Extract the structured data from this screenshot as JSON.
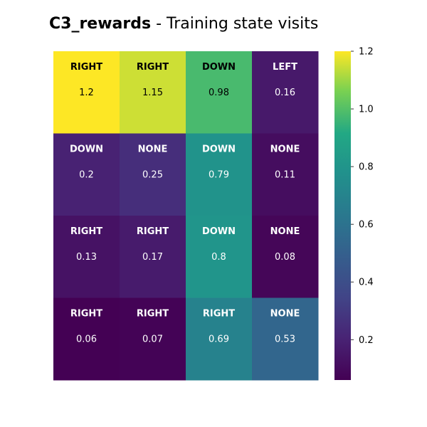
{
  "title": {
    "bold_part": "C3_rewards",
    "rest": " - Training state visits"
  },
  "chart_data": {
    "type": "heatmap",
    "rows": 4,
    "cols": 4,
    "cells": [
      [
        {
          "action": "RIGHT",
          "value": 1.2
        },
        {
          "action": "RIGHT",
          "value": 1.15
        },
        {
          "action": "DOWN",
          "value": 0.98
        },
        {
          "action": "LEFT",
          "value": 0.16
        }
      ],
      [
        {
          "action": "DOWN",
          "value": 0.2
        },
        {
          "action": "NONE",
          "value": 0.25
        },
        {
          "action": "DOWN",
          "value": 0.79
        },
        {
          "action": "NONE",
          "value": 0.11
        }
      ],
      [
        {
          "action": "RIGHT",
          "value": 0.13
        },
        {
          "action": "RIGHT",
          "value": 0.17
        },
        {
          "action": "DOWN",
          "value": 0.8
        },
        {
          "action": "NONE",
          "value": 0.08
        }
      ],
      [
        {
          "action": "RIGHT",
          "value": 0.06
        },
        {
          "action": "RIGHT",
          "value": 0.07
        },
        {
          "action": "RIGHT",
          "value": 0.69
        },
        {
          "action": "NONE",
          "value": 0.53
        }
      ]
    ],
    "colormap": "viridis",
    "vmin": 0.06,
    "vmax": 1.2,
    "colorbar_ticks": [
      0.2,
      0.4,
      0.6,
      0.8,
      1.0,
      1.2
    ],
    "colorbar_tick_labels": [
      "0.2",
      "0.4",
      "0.6",
      "0.8",
      "1.0",
      "1.2"
    ]
  }
}
